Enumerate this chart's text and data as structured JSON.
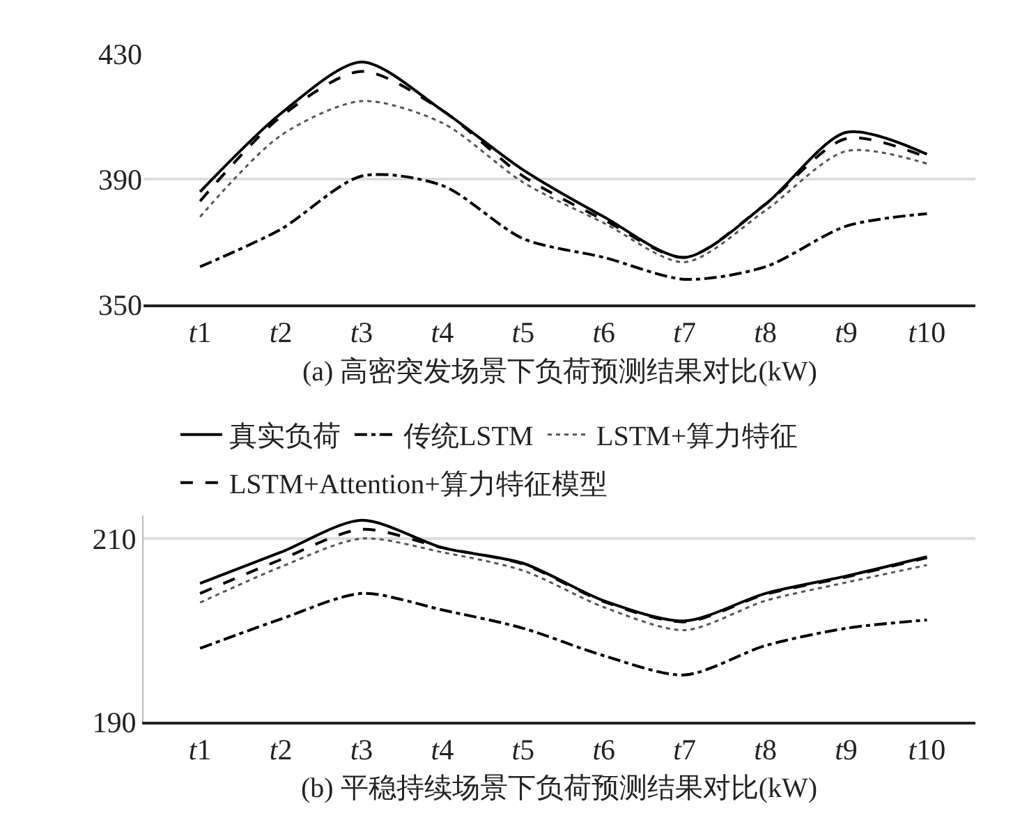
{
  "chart_data": [
    {
      "type": "line",
      "title": "(a) 高密突发场景下负荷预测结果对比(kW)",
      "categories": [
        "t1",
        "t2",
        "t3",
        "t4",
        "t5",
        "t6",
        "t7",
        "t8",
        "t9",
        "t10"
      ],
      "series": [
        {
          "color": "#000000",
          "line_style": "solid",
          "values": [
            386,
            411,
            427.5,
            412,
            393,
            378,
            365,
            382,
            405,
            398
          ]
        },
        {
          "color": "#000000",
          "line_style": "dashdot",
          "values": [
            362,
            374,
            391,
            388,
            371,
            365,
            358,
            362,
            375,
            379
          ]
        },
        {
          "color": "#555555",
          "line_style": "dotted",
          "values": [
            378,
            404,
            415,
            408,
            389,
            376,
            363.5,
            380,
            399,
            395
          ]
        },
        {
          "color": "#000000",
          "line_style": "dashed",
          "values": [
            383,
            410,
            424.5,
            412,
            391,
            377,
            365,
            382,
            403,
            397
          ]
        }
      ],
      "ylim": [
        350,
        430
      ],
      "yticks": [
        350,
        390,
        430
      ],
      "grid": "y",
      "legend": false
    },
    {
      "type": "line",
      "title": "(b) 平稳持续场景下负荷预测结果对比(kW)",
      "categories": [
        "t1",
        "t2",
        "t3",
        "t4",
        "t5",
        "t6",
        "t7",
        "t8",
        "t9",
        "t10"
      ],
      "series": [
        {
          "name": "真实负荷",
          "color": "#000000",
          "line_style": "solid",
          "values": [
            205.1,
            208.5,
            212,
            209,
            207.3,
            203.2,
            201,
            204,
            205.9,
            208
          ]
        },
        {
          "name": "传统LSTM",
          "color": "#000000",
          "line_style": "dashdot",
          "values": [
            198,
            201.2,
            204,
            202.2,
            200.2,
            197.2,
            195.1,
            198.3,
            200.2,
            201.1
          ]
        },
        {
          "name": "LSTM+算力特征",
          "color": "#555555",
          "line_style": "dotted",
          "values": [
            203,
            206.9,
            210,
            208.5,
            206.5,
            202.5,
            200,
            203.2,
            205.2,
            207.1
          ]
        },
        {
          "name": "LSTM+Attention+算力特征模型",
          "color": "#000000",
          "line_style": "dashed",
          "values": [
            204,
            207.7,
            211,
            209,
            207.2,
            203.1,
            200.9,
            203.9,
            205.8,
            207.9
          ]
        }
      ],
      "ylim": [
        190,
        212.5
      ],
      "yticks": [
        190,
        210
      ],
      "grid": "y",
      "legend": "top"
    }
  ]
}
